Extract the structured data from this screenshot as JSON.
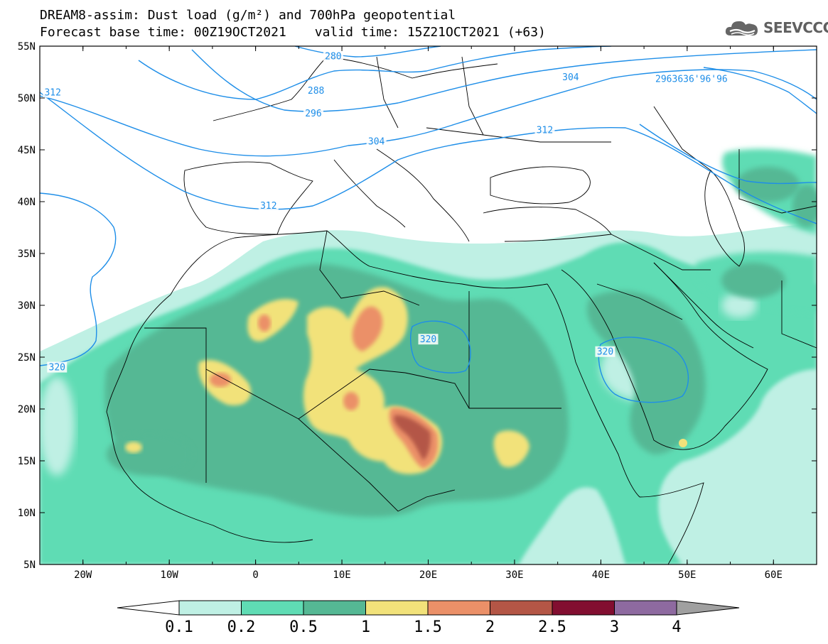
{
  "title_line1": "DREAM8-assim: Dust load (g/m²) and 700hPa geopotential",
  "base_time": "Forecast base time: 00Z19OCT2021",
  "valid_time": "valid time: 15Z21OCT2021 (+63)",
  "logo_text": "SEEVCCC",
  "map": {
    "lon_range": [
      -25,
      65
    ],
    "lat_range": [
      5,
      55
    ],
    "x_ticks": [
      {
        "lon": -20,
        "label": "20W"
      },
      {
        "lon": -10,
        "label": "10W"
      },
      {
        "lon": 0,
        "label": "0"
      },
      {
        "lon": 10,
        "label": "10E"
      },
      {
        "lon": 20,
        "label": "20E"
      },
      {
        "lon": 30,
        "label": "30E"
      },
      {
        "lon": 40,
        "label": "40E"
      },
      {
        "lon": 50,
        "label": "50E"
      },
      {
        "lon": 60,
        "label": "60E"
      }
    ],
    "y_ticks": [
      {
        "lat": 55,
        "label": "55N"
      },
      {
        "lat": 50,
        "label": "50N"
      },
      {
        "lat": 45,
        "label": "45N"
      },
      {
        "lat": 40,
        "label": "40N"
      },
      {
        "lat": 35,
        "label": "35N"
      },
      {
        "lat": 30,
        "label": "30N"
      },
      {
        "lat": 25,
        "label": "25N"
      },
      {
        "lat": 20,
        "label": "20N"
      },
      {
        "lat": 15,
        "label": "15N"
      },
      {
        "lat": 10,
        "label": "10N"
      },
      {
        "lat": 5,
        "label": "5N"
      }
    ],
    "contour_labels": [
      {
        "text": "280",
        "lon": 9,
        "lat": 54
      },
      {
        "text": "288",
        "lon": 7,
        "lat": 50.7
      },
      {
        "text": "296",
        "lon": 6.7,
        "lat": 48.5
      },
      {
        "text": "304",
        "lon": 14,
        "lat": 45.8
      },
      {
        "text": "304",
        "lon": 36.5,
        "lat": 52
      },
      {
        "text": "312",
        "lon": -23.5,
        "lat": 50.5
      },
      {
        "text": "312",
        "lon": 1.5,
        "lat": 39.6
      },
      {
        "text": "312",
        "lon": 33.5,
        "lat": 46.9
      },
      {
        "text": "2963636'96'96",
        "lon": 50.5,
        "lat": 51.8
      },
      {
        "text": "320",
        "lon": -23,
        "lat": 24
      },
      {
        "text": "320",
        "lon": 20,
        "lat": 26.7
      },
      {
        "text": "320",
        "lon": 40.5,
        "lat": 25.5
      }
    ]
  },
  "colorbar": {
    "ticks": [
      "0.1",
      "0.2",
      "0.5",
      "1",
      "1.5",
      "2",
      "2.5",
      "3",
      "4"
    ],
    "colors": [
      "#bff0e4",
      "#5fdcb4",
      "#55b894",
      "#f2e27a",
      "#eb9068",
      "#b45646",
      "#820e30",
      "#8e6aa0"
    ],
    "under_color": "#ffffff",
    "over_color": "#a0a0a0"
  }
}
